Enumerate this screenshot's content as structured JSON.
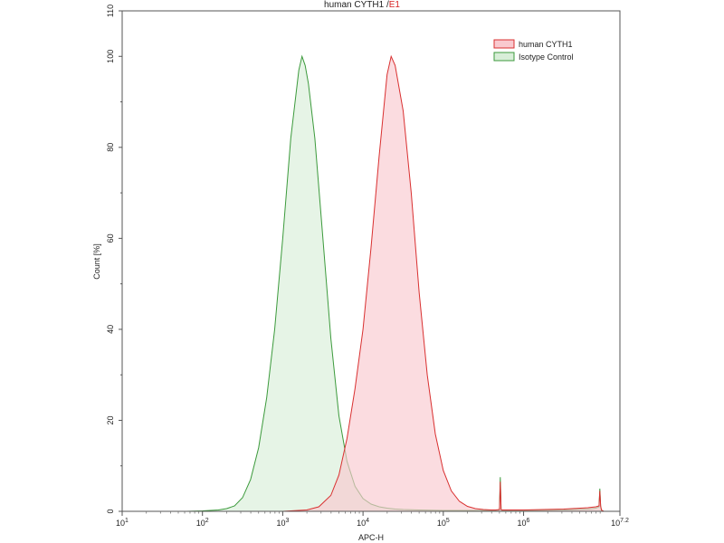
{
  "chart_data": {
    "type": "area",
    "title": "human CYTH1",
    "title_separator": "/",
    "title_gate": "E1",
    "xlabel": "APC-H",
    "ylabel": "Count [%]",
    "x_scale": "log",
    "xlim": [
      10,
      15848932
    ],
    "ylim": [
      0,
      110
    ],
    "grid": false,
    "legend_position": "top-right",
    "x_ticks": [
      {
        "base": "10",
        "exp": "1",
        "value": 10
      },
      {
        "base": "10",
        "exp": "2",
        "value": 100
      },
      {
        "base": "10",
        "exp": "3",
        "value": 1000
      },
      {
        "base": "10",
        "exp": "4",
        "value": 10000
      },
      {
        "base": "10",
        "exp": "5",
        "value": 100000
      },
      {
        "base": "10",
        "exp": "6",
        "value": 1000000
      },
      {
        "base": "10",
        "exp": "7.2",
        "value": 15848932
      }
    ],
    "y_ticks": [
      "0",
      "20",
      "40",
      "60",
      "80",
      "100",
      "110"
    ],
    "series": [
      {
        "name": "human CYTH1",
        "line_color": "#d93030",
        "fill_color": "#f9c9cf",
        "x": [
          1000,
          1995,
          2818,
          3981,
          5012,
          6310,
          7943,
          10000,
          12589,
          15849,
          19953,
          22387,
          25119,
          31623,
          39811,
          50119,
          63096,
          79433,
          100000,
          125893,
          158489,
          199526,
          251189,
          316228,
          398107,
          446684,
          501187,
          512861,
          524807,
          537032,
          562341,
          1000000,
          3162278,
          6309573,
          7943282,
          8709636,
          8912509,
          9120108,
          9332543,
          10000000
        ],
        "y": [
          0,
          0.3,
          1,
          3.5,
          8,
          16,
          27,
          40,
          58,
          78,
          96,
          100,
          98,
          88,
          70,
          48,
          30,
          17,
          9,
          4.5,
          2.2,
          1.1,
          0.6,
          0.4,
          0.3,
          0.3,
          0.4,
          6.5,
          0.4,
          0.3,
          0.3,
          0.3,
          0.5,
          0.8,
          1,
          1.2,
          4.5,
          1.2,
          0.3,
          0
        ]
      },
      {
        "name": "Isotype Control",
        "line_color": "#3c9a3c",
        "fill_color": "#d8eed8",
        "x": [
          63,
          100,
          158,
          200,
          251,
          316,
          398,
          501,
          631,
          794,
          1000,
          1259,
          1585,
          1738,
          1905,
          2089,
          2512,
          3162,
          3981,
          5012,
          6310,
          7943,
          10000,
          12589,
          15849,
          19953,
          25119,
          31623,
          50119,
          100000,
          251189,
          446684,
          501187,
          512861,
          524807,
          537032,
          562341,
          1000000,
          3162278,
          6309573,
          7943282,
          8709636,
          8912509,
          9120108,
          9332543,
          10000000
        ],
        "y": [
          0,
          0.1,
          0.3,
          0.6,
          1.2,
          3,
          7,
          14,
          25,
          40,
          60,
          82,
          97,
          100,
          98,
          94,
          82,
          60,
          38,
          21,
          11,
          5.5,
          2.8,
          1.6,
          1,
          0.7,
          0.5,
          0.4,
          0.3,
          0.2,
          0.2,
          0.2,
          0.3,
          7.5,
          0.3,
          0.2,
          0.2,
          0.2,
          0.3,
          0.5,
          0.7,
          1,
          5,
          1,
          0.2,
          0
        ]
      }
    ]
  }
}
